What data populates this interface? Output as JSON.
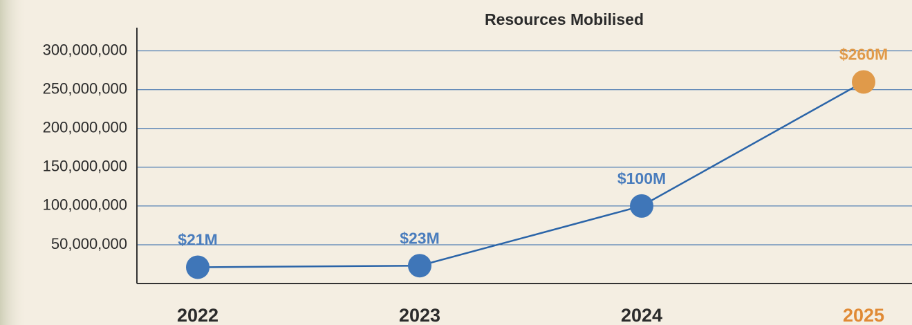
{
  "chart_data": {
    "type": "line",
    "title": "Resources Mobilised",
    "categories": [
      "2022",
      "2023",
      "2024",
      "2025"
    ],
    "values": [
      21000000,
      23000000,
      100000000,
      260000000
    ],
    "value_labels": [
      "$21M",
      "$23M",
      "$100M",
      "$260M"
    ],
    "color": "#2a64a8",
    "point_colors": [
      "#3f76b8",
      "#3f76b8",
      "#3f76b8",
      "#e09a4a"
    ],
    "category_colors": [
      "#2b2b2b",
      "#2b2b2b",
      "#2b2b2b",
      "#e08a35"
    ],
    "label_colors": [
      "#4a7dbd",
      "#4a7dbd",
      "#4a7dbd",
      "#e09a4a"
    ],
    "ylim": [
      0,
      330000000
    ],
    "yticks": [
      {
        "value": 50000000,
        "label": "50,000,000"
      },
      {
        "value": 100000000,
        "label": "100,000,000"
      },
      {
        "value": 150000000,
        "label": "150,000,000"
      },
      {
        "value": 200000000,
        "label": "200,000,000"
      },
      {
        "value": 250000000,
        "label": "250,000,000"
      },
      {
        "value": 300000000,
        "label": "300,000,000"
      }
    ],
    "grid": true
  }
}
